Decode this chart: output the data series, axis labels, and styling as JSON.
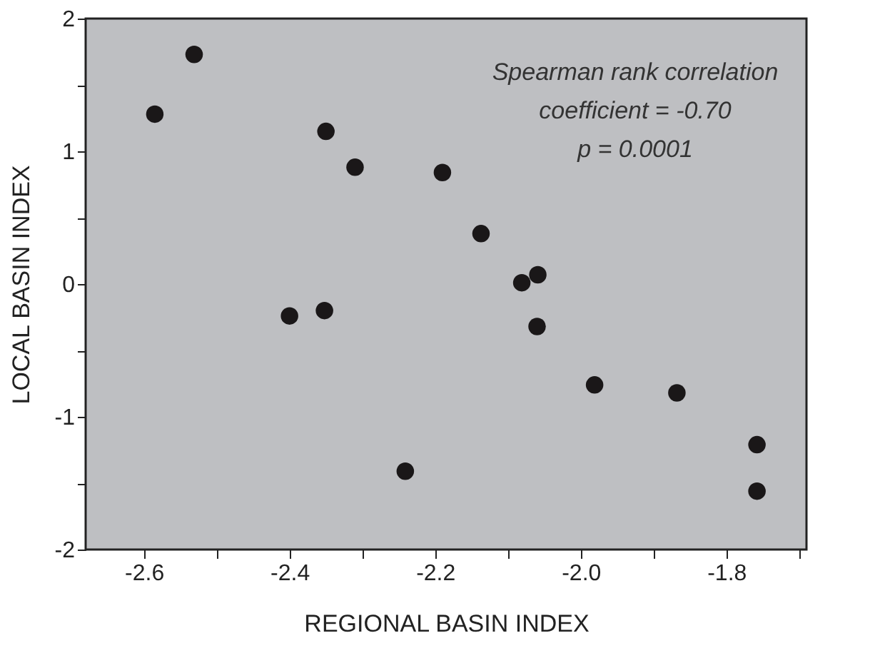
{
  "chart_data": {
    "type": "scatter",
    "xlabel": "REGIONAL BASIN INDEX",
    "ylabel": "LOCAL BASIN INDEX",
    "x": [
      -2.585,
      -2.531,
      -2.35,
      -2.31,
      -2.4,
      -2.352,
      -2.241,
      -2.19,
      -2.137,
      -2.081,
      -2.059,
      -2.06,
      -1.981,
      -1.868,
      -1.758,
      -1.758
    ],
    "values": [
      1.28,
      1.73,
      1.15,
      0.88,
      -0.24,
      -0.2,
      -1.41,
      0.84,
      0.38,
      0.01,
      0.07,
      -0.32,
      -0.76,
      -0.82,
      -1.21,
      -1.56
    ],
    "color": "#1a1718",
    "marker": "circle",
    "xlim": [
      -2.68,
      -1.69
    ],
    "ylim": [
      -2,
      2
    ],
    "xticks": [
      {
        "value": -2.6,
        "label": "-2.6"
      },
      {
        "value": -2.5,
        "label": null
      },
      {
        "value": -2.4,
        "label": "-2.4"
      },
      {
        "value": -2.3,
        "label": null
      },
      {
        "value": -2.2,
        "label": "-2.2"
      },
      {
        "value": -2.1,
        "label": null
      },
      {
        "value": -2.0,
        "label": "-2.0"
      },
      {
        "value": -1.9,
        "label": null
      },
      {
        "value": -1.8,
        "label": "-1.8"
      },
      {
        "value": -1.7,
        "label": null
      }
    ],
    "yticks": [
      -2,
      {
        "value": -1.5,
        "label": null
      },
      -1,
      {
        "value": -0.5,
        "label": null
      },
      0,
      {
        "value": 0.5,
        "label": null
      },
      1,
      {
        "value": 1.5,
        "label": null
      },
      2
    ],
    "grid": false,
    "annotations": [
      "Spearman rank correlation",
      "coefficient = -0.70",
      "p = 0.0001"
    ]
  }
}
